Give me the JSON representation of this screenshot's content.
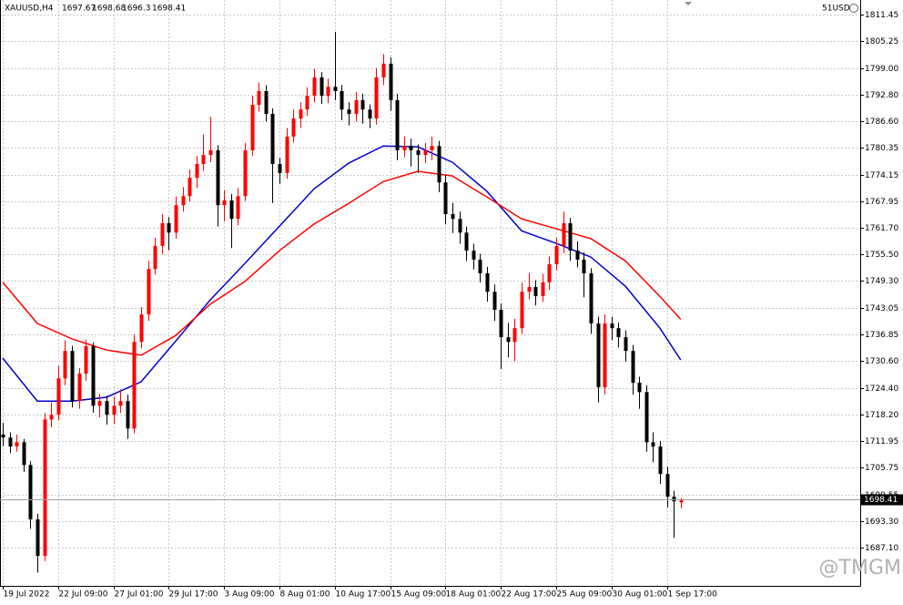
{
  "chart_data": {
    "type": "candlestick",
    "symbol": "XAUUSD,H4",
    "account": "51USD",
    "watermark": "@TMGM",
    "up_color": "#ff0000",
    "down_color": "#000000",
    "open": [
      1713.5,
      1712.8,
      1710.7,
      1711.7,
      1706.4,
      1693.7,
      1685.2,
      1717.0,
      1718.1,
      1726.6,
      1733.0,
      1721.3,
      1727.7,
      1734.1,
      1720.2,
      1721.3,
      1718.1,
      1720.2,
      1721.3,
      1714.9,
      1735.1,
      1741.5,
      1752.1,
      1757.5,
      1762.8,
      1760.6,
      1767.0,
      1769.1,
      1773.4,
      1776.6,
      1778.7,
      1779.8,
      1767.0,
      1768.1,
      1763.8,
      1769.1,
      1779.8,
      1790.4,
      1793.6,
      1788.3,
      1776.6,
      1774.5,
      1783.0,
      1787.2,
      1789.3,
      1792.5,
      1796.8,
      1792.5,
      1794.6,
      1793.6,
      1789.3,
      1788.3,
      1791.5,
      1789.3,
      1787.2,
      1796.8,
      1800.0,
      1791.5,
      1779.8,
      1780.8,
      1779.8,
      1778.7,
      1779.8,
      1780.8,
      1772.3,
      1764.9,
      1763.8,
      1760.6,
      1756.4,
      1754.3,
      1751.1,
      1746.8,
      1742.6,
      1736.2,
      1735.1,
      1738.3,
      1746.8,
      1747.9,
      1745.8,
      1749.0,
      1753.2,
      1757.5,
      1762.8,
      1756.4,
      1754.3,
      1751.1,
      1739.4,
      1724.5,
      1739.4,
      1738.3,
      1736.2,
      1733.0,
      1725.6,
      1723.4,
      1711.7,
      1710.7,
      1704.3,
      1699.0,
      1697.67
    ],
    "high": [
      1716.2,
      1714.0,
      1713.5,
      1712.5,
      1707.3,
      1695.0,
      1718.5,
      1721.0,
      1729.5,
      1735.5,
      1734.2,
      1729.0,
      1735.6,
      1735.0,
      1723.0,
      1722.5,
      1722.4,
      1724.0,
      1722.8,
      1736.8,
      1743.2,
      1754.0,
      1759.4,
      1765.0,
      1764.2,
      1769.0,
      1771.2,
      1775.3,
      1778.5,
      1783.5,
      1787.6,
      1781.0,
      1770.5,
      1769.6,
      1771.0,
      1781.5,
      1792.5,
      1795.6,
      1795.0,
      1789.6,
      1778.0,
      1785.0,
      1789.3,
      1791.0,
      1794.5,
      1798.8,
      1798.0,
      1796.5,
      1807.4,
      1795.0,
      1791.0,
      1793.4,
      1793.0,
      1790.5,
      1799.0,
      1802.2,
      1801.5,
      1793.0,
      1783.0,
      1782.5,
      1781.2,
      1781.5,
      1783.0,
      1782.0,
      1774.0,
      1767.5,
      1765.5,
      1762.0,
      1758.0,
      1755.6,
      1752.6,
      1748.5,
      1744.0,
      1739.5,
      1740.5,
      1748.9,
      1751.2,
      1749.5,
      1751.0,
      1755.0,
      1759.5,
      1765.5,
      1764.0,
      1758.5,
      1756.0,
      1752.3,
      1741.0,
      1741.5,
      1741.0,
      1739.6,
      1737.8,
      1734.4,
      1727.0,
      1725.0,
      1714.0,
      1712.0,
      1706.0,
      1700.4,
      1698.68
    ],
    "low": [
      1710.8,
      1709.2,
      1709.5,
      1704.8,
      1691.5,
      1681.3,
      1684.0,
      1715.2,
      1716.8,
      1725.0,
      1719.8,
      1719.5,
      1726.0,
      1718.6,
      1717.5,
      1715.8,
      1716.0,
      1718.5,
      1712.5,
      1713.8,
      1733.6,
      1740.0,
      1750.8,
      1755.6,
      1756.5,
      1759.2,
      1765.5,
      1767.8,
      1771.0,
      1775.0,
      1777.0,
      1762.0,
      1763.2,
      1757.0,
      1762.3,
      1768.0,
      1778.5,
      1788.8,
      1786.5,
      1767.5,
      1772.0,
      1773.2,
      1781.6,
      1785.0,
      1787.8,
      1791.0,
      1790.6,
      1790.8,
      1791.5,
      1786.8,
      1785.6,
      1786.5,
      1786.0,
      1785.0,
      1785.8,
      1795.0,
      1789.0,
      1777.5,
      1778.2,
      1776.0,
      1774.5,
      1776.8,
      1777.5,
      1770.0,
      1762.5,
      1760.5,
      1758.0,
      1754.0,
      1752.0,
      1749.0,
      1744.5,
      1740.0,
      1728.8,
      1731.5,
      1730.6,
      1737.0,
      1745.0,
      1743.6,
      1744.5,
      1747.2,
      1751.8,
      1755.8,
      1754.0,
      1752.5,
      1745.5,
      1737.0,
      1721.0,
      1722.8,
      1735.5,
      1733.8,
      1730.5,
      1722.8,
      1719.5,
      1709.5,
      1707.0,
      1702.0,
      1696.5,
      1689.4,
      1696.3
    ],
    "close": [
      1712.8,
      1710.7,
      1711.7,
      1706.4,
      1693.7,
      1685.2,
      1717.0,
      1718.1,
      1726.6,
      1733.0,
      1721.3,
      1727.7,
      1734.1,
      1720.2,
      1721.3,
      1718.1,
      1720.2,
      1721.3,
      1714.9,
      1735.1,
      1741.5,
      1752.1,
      1757.5,
      1762.8,
      1760.6,
      1767.0,
      1769.1,
      1773.4,
      1776.6,
      1778.7,
      1779.8,
      1767.0,
      1768.1,
      1763.8,
      1769.1,
      1779.8,
      1790.4,
      1793.6,
      1788.3,
      1776.6,
      1774.5,
      1783.0,
      1787.2,
      1789.3,
      1792.5,
      1796.8,
      1792.5,
      1794.6,
      1793.6,
      1789.3,
      1788.3,
      1791.5,
      1789.3,
      1787.2,
      1796.8,
      1800.0,
      1791.5,
      1779.8,
      1780.8,
      1779.8,
      1778.7,
      1779.8,
      1780.8,
      1772.3,
      1764.9,
      1763.8,
      1760.6,
      1756.4,
      1754.3,
      1751.1,
      1746.8,
      1742.6,
      1736.2,
      1735.1,
      1738.3,
      1746.8,
      1747.9,
      1745.8,
      1749.0,
      1753.2,
      1757.5,
      1762.8,
      1756.4,
      1754.3,
      1751.1,
      1739.4,
      1724.5,
      1739.4,
      1738.3,
      1736.2,
      1733.0,
      1725.6,
      1723.4,
      1711.7,
      1710.7,
      1704.3,
      1699.0,
      1697.9,
      1698.41
    ],
    "lines": [
      {
        "color": "#0000cc",
        "x": [
          0,
          5,
          10,
          15,
          20,
          25,
          30,
          35,
          40,
          45,
          50,
          55,
          60,
          65,
          70,
          75,
          80,
          85,
          90,
          95,
          98
        ],
        "values": [
          1731.3,
          1721.3,
          1721.3,
          1722.2,
          1725.8,
          1735.3,
          1744.9,
          1753.4,
          1762.1,
          1770.8,
          1776.8,
          1780.8,
          1780.6,
          1777.0,
          1770.2,
          1761.0,
          1758.1,
          1754.9,
          1748.1,
          1738.3,
          1730.9
        ]
      },
      {
        "color": "#ff0000",
        "x": [
          0,
          5,
          10,
          15,
          20,
          25,
          30,
          35,
          40,
          45,
          50,
          55,
          60,
          65,
          70,
          75,
          80,
          85,
          90,
          95,
          98
        ],
        "values": [
          1749.0,
          1739.4,
          1735.8,
          1733.2,
          1732.0,
          1736.6,
          1743.9,
          1749.2,
          1756.4,
          1762.6,
          1767.4,
          1772.5,
          1774.9,
          1773.8,
          1768.9,
          1763.8,
          1761.5,
          1759.2,
          1754.0,
          1745.7,
          1740.4
        ]
      }
    ],
    "xlim": [
      -0.4,
      123.95
    ],
    "xticks": [
      {
        "value": 0,
        "label": "19 Jul 2022"
      },
      {
        "value": 8,
        "label": "22 Jul 09:00"
      },
      {
        "value": 16,
        "label": "27 Jul 01:00"
      },
      {
        "value": 24,
        "label": "29 Jul 17:00"
      },
      {
        "value": 32,
        "label": "3 Aug 09:00"
      },
      {
        "value": 40,
        "label": "8 Aug 01:00"
      },
      {
        "value": 48,
        "label": "10 Aug 17:00"
      },
      {
        "value": 56,
        "label": "15 Aug 09:00"
      },
      {
        "value": 64,
        "label": "18 Aug 01:00"
      },
      {
        "value": 72,
        "label": "22 Aug 17:00"
      },
      {
        "value": 80,
        "label": "25 Aug 09:00"
      },
      {
        "value": 88,
        "label": "30 Aug 01:00"
      },
      {
        "value": 96,
        "label": "1 Sep 17:00"
      }
    ],
    "ylim": [
      1678.2,
      1814.85
    ],
    "yticks": [
      {
        "value": 1811.45,
        "label": "1811.45"
      },
      {
        "value": 1805.25,
        "label": "1805.25"
      },
      {
        "value": 1799,
        "label": "1799.00"
      },
      {
        "value": 1792.8,
        "label": "1792.80"
      },
      {
        "value": 1786.6,
        "label": "1786.60"
      },
      {
        "value": 1780.35,
        "label": "1780.35"
      },
      {
        "value": 1774.15,
        "label": "1774.15"
      },
      {
        "value": 1767.95,
        "label": "1767.95"
      },
      {
        "value": 1761.7,
        "label": "1761.70"
      },
      {
        "value": 1755.5,
        "label": "1755.50"
      },
      {
        "value": 1749.3,
        "label": "1749.30"
      },
      {
        "value": 1743.05,
        "label": "1743.05"
      },
      {
        "value": 1736.85,
        "label": "1736.85"
      },
      {
        "value": 1730.6,
        "label": "1730.60"
      },
      {
        "value": 1724.4,
        "label": "1724.40"
      },
      {
        "value": 1718.2,
        "label": "1718.20"
      },
      {
        "value": 1711.95,
        "label": "1711.95"
      },
      {
        "value": 1705.75,
        "label": "1705.75"
      },
      {
        "value": 1699.55,
        "label": "1699.55"
      },
      {
        "value": 1693.3,
        "label": "1693.30"
      },
      {
        "value": 1687.1,
        "label": "1687.10"
      }
    ],
    "grid": true
  }
}
